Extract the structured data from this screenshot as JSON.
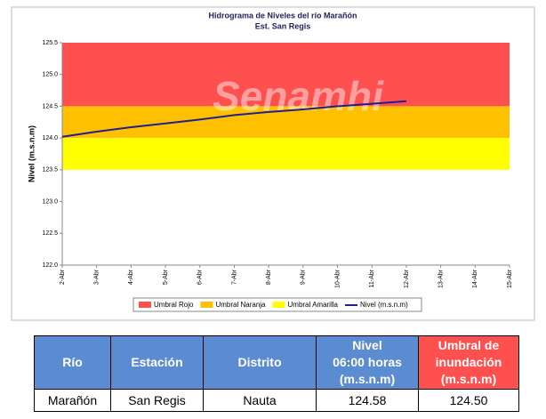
{
  "chart_data": {
    "type": "line",
    "title": "Hidrograma de Niveles del río Marañón",
    "subtitle": "Est. San Regis",
    "watermark": "Senamhi",
    "y_label": "Nivel (m.s.n.m)",
    "categories": [
      "2-Abr",
      "3-Abr",
      "4-Abr",
      "5-Abr",
      "6-Abr",
      "7-Abr",
      "8-Abr",
      "9-Abr",
      "10-Abr",
      "11-Abr",
      "12-Abr",
      "13-Abr",
      "14-Abr",
      "15-Abr"
    ],
    "thresholds": [
      {
        "name": "Umbral Rojo",
        "color": "#ff5050",
        "from": 124.5,
        "to": 125.5
      },
      {
        "name": "Umbral Naranja",
        "color": "#ffc000",
        "from": 124.0,
        "to": 124.5
      },
      {
        "name": "Umbral Amarilla",
        "color": "#ffff00",
        "from": 123.5,
        "to": 124.0
      }
    ],
    "series": [
      {
        "name": "Nivel (m.s.n.m)",
        "color": "#1f1f8f",
        "values": [
          124.02,
          124.1,
          124.17,
          124.23,
          124.29,
          124.36,
          124.41,
          124.45,
          124.5,
          124.54,
          124.58,
          null,
          null,
          null
        ]
      }
    ],
    "ylim": [
      122.0,
      125.5
    ],
    "yticks": [
      {
        "value": 122,
        "label": "122.0"
      },
      122.5,
      {
        "value": 123,
        "label": "123.0"
      },
      123.5,
      {
        "value": 124,
        "label": "124.0"
      },
      124.5,
      {
        "value": 125,
        "label": "125.0"
      },
      125.5
    ],
    "legend": "bottom"
  },
  "table": {
    "header": [
      [
        "Río"
      ],
      [
        "Estación"
      ],
      [
        "Distrito"
      ],
      [
        "Nivel",
        "06:00 horas",
        "(m.s.n.m)"
      ],
      [
        "Umbral de",
        "inundación",
        "(m.s.n.m)"
      ]
    ],
    "rows": [
      [
        "Marañón",
        "San Regis",
        "Nauta",
        "124.58",
        "124.50"
      ]
    ]
  }
}
